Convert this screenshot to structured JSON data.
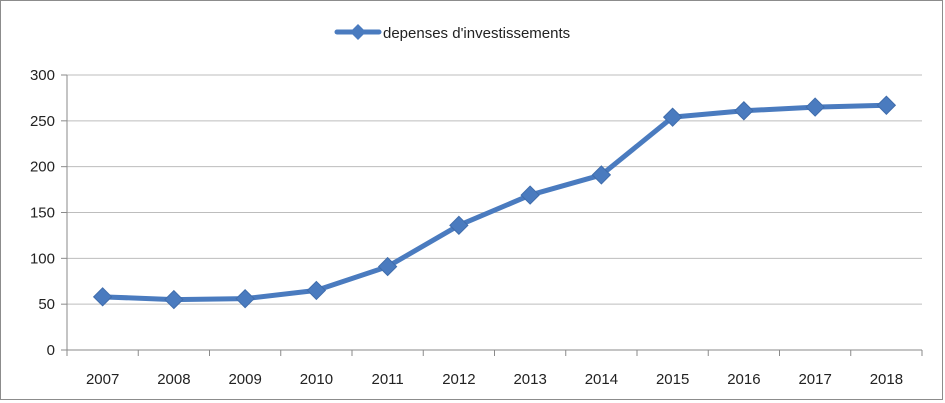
{
  "chart_data": {
    "type": "line",
    "categories": [
      "2007",
      "2008",
      "2009",
      "2010",
      "2011",
      "2012",
      "2013",
      "2014",
      "2015",
      "2016",
      "2017",
      "2018"
    ],
    "series": [
      {
        "name": "depenses d'investissements",
        "values": [
          58,
          55,
          56,
          65,
          91,
          136,
          169,
          191,
          254,
          261,
          265,
          267
        ],
        "color": "#4a7bbf"
      }
    ],
    "ylim": [
      0,
      300
    ],
    "yticks": [
      0,
      50,
      100,
      150,
      200,
      250,
      300
    ],
    "grid": true,
    "legend": "top"
  }
}
